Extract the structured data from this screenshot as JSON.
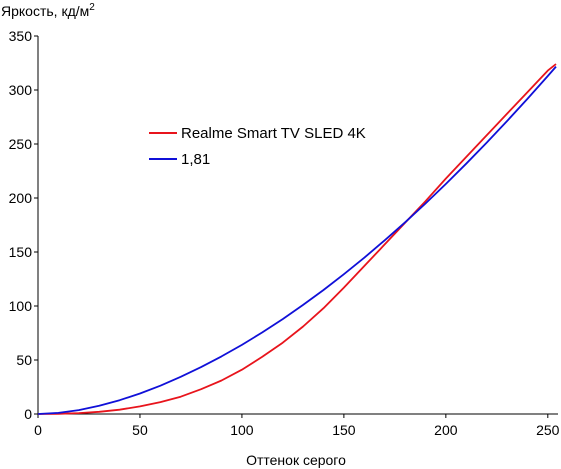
{
  "chart_data": {
    "type": "line",
    "ylabel": "Яркость, кд/м",
    "ylabel_sup": "2",
    "xlabel": "Оттенок серого",
    "xlim": [
      0,
      255
    ],
    "ylim": [
      0,
      350
    ],
    "xticks": [
      0,
      50,
      100,
      150,
      200,
      250
    ],
    "yticks": [
      0,
      50,
      100,
      150,
      200,
      250,
      300,
      350
    ],
    "grid": false,
    "legend_position": "upper-left-center",
    "series": [
      {
        "name": "Realme Smart TV SLED 4K",
        "color": "#e8141c",
        "x": [
          0,
          10,
          20,
          30,
          40,
          50,
          60,
          70,
          80,
          90,
          100,
          110,
          120,
          130,
          140,
          150,
          160,
          170,
          180,
          190,
          200,
          210,
          220,
          230,
          240,
          250,
          254
        ],
        "y": [
          0,
          0.2,
          0.8,
          2,
          4,
          7,
          11,
          16,
          23,
          31,
          41,
          53,
          66,
          81,
          98,
          117,
          137,
          157,
          177,
          197,
          218,
          238,
          258,
          278,
          298,
          318,
          324
        ]
      },
      {
        "name": "1,81",
        "color": "#1010d8",
        "x": [
          0,
          10,
          20,
          30,
          40,
          50,
          60,
          70,
          80,
          90,
          100,
          110,
          120,
          130,
          140,
          150,
          160,
          170,
          180,
          190,
          200,
          210,
          220,
          230,
          240,
          250,
          254
        ],
        "y": [
          0,
          1,
          3.6,
          7.6,
          12.8,
          19,
          26.2,
          34.4,
          43.4,
          53.3,
          64,
          75.6,
          87.9,
          101,
          114.8,
          129.4,
          144.7,
          160.8,
          177.5,
          194.9,
          213,
          231.8,
          251.2,
          271.2,
          291.8,
          313,
          321.7
        ]
      }
    ]
  }
}
